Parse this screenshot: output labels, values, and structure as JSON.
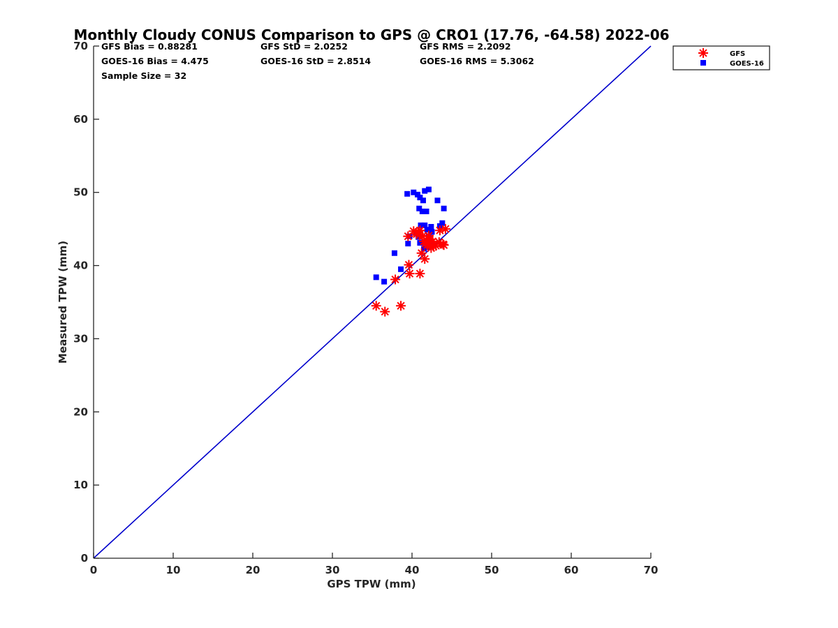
{
  "chart_data": {
    "type": "scatter",
    "title": "Monthly Cloudy CONUS Comparison to GPS @ CRO1 (17.76, -64.58) 2022-06",
    "xlabel": "GPS TPW (mm)",
    "ylabel": "Measured TPW (mm)",
    "xlim": [
      0,
      70
    ],
    "ylim": [
      0,
      70
    ],
    "xticks": [
      "0",
      "10",
      "20",
      "30",
      "40",
      "50",
      "60",
      "70"
    ],
    "yticks": [
      "0",
      "10",
      "20",
      "30",
      "40",
      "50",
      "60",
      "70"
    ],
    "grid": false,
    "legend_position": "top-right",
    "stats": [
      "GFS Bias = 0.88281",
      "GFS StD = 2.0252",
      "GFS RMS = 2.2092",
      "GOES-16 Bias = 4.475",
      "GOES-16 StD = 2.8514",
      "GOES-16 RMS = 5.3062",
      "Sample Size = 32"
    ],
    "reference_line": {
      "x": [
        0,
        70
      ],
      "y": [
        0,
        70
      ],
      "color": "#0000cc"
    },
    "series": [
      {
        "name": "GFS",
        "marker": "asterisk",
        "color": "#ff0000",
        "points": [
          [
            35.5,
            34.5
          ],
          [
            36.6,
            33.7
          ],
          [
            38.6,
            34.5
          ],
          [
            37.9,
            38.1
          ],
          [
            39.6,
            40.1
          ],
          [
            39.7,
            38.9
          ],
          [
            41.0,
            38.9
          ],
          [
            41.6,
            40.9
          ],
          [
            41.2,
            41.7
          ],
          [
            42.4,
            42.4
          ],
          [
            43.0,
            42.7
          ],
          [
            43.4,
            43.2
          ],
          [
            43.9,
            42.9
          ],
          [
            44.0,
            42.8
          ],
          [
            42.0,
            42.9
          ],
          [
            41.8,
            43.5
          ],
          [
            41.7,
            43.0
          ],
          [
            42.6,
            43.3
          ],
          [
            41.3,
            44.0
          ],
          [
            40.6,
            44.3
          ],
          [
            40.2,
            44.7
          ],
          [
            40.8,
            44.6
          ],
          [
            41.0,
            44.8
          ],
          [
            39.5,
            44.0
          ],
          [
            42.1,
            44.1
          ],
          [
            44.2,
            45.0
          ],
          [
            43.5,
            44.8
          ],
          [
            42.2,
            43.6
          ],
          [
            40.9,
            44.2
          ],
          [
            42.7,
            42.6
          ],
          [
            41.5,
            43.3
          ],
          [
            41.9,
            42.8
          ]
        ]
      },
      {
        "name": "GOES-16",
        "marker": "square",
        "color": "#0000ff",
        "points": [
          [
            35.5,
            38.4
          ],
          [
            36.5,
            37.8
          ],
          [
            37.8,
            41.7
          ],
          [
            38.6,
            39.5
          ],
          [
            39.4,
            49.8
          ],
          [
            40.2,
            50.0
          ],
          [
            40.7,
            49.7
          ],
          [
            41.0,
            49.3
          ],
          [
            41.6,
            50.2
          ],
          [
            42.1,
            50.4
          ],
          [
            41.4,
            48.9
          ],
          [
            40.9,
            47.8
          ],
          [
            41.3,
            47.4
          ],
          [
            41.8,
            47.4
          ],
          [
            43.2,
            48.9
          ],
          [
            44.0,
            47.8
          ],
          [
            41.1,
            45.5
          ],
          [
            41.6,
            45.5
          ],
          [
            43.5,
            45.4
          ],
          [
            43.8,
            45.8
          ],
          [
            42.4,
            45.3
          ],
          [
            39.7,
            44.0
          ],
          [
            39.5,
            43.0
          ],
          [
            41.0,
            43.1
          ],
          [
            41.5,
            42.3
          ],
          [
            42.0,
            42.5
          ],
          [
            42.5,
            44.6
          ],
          [
            42.1,
            44.0
          ],
          [
            40.8,
            43.9
          ],
          [
            41.9,
            44.9
          ],
          [
            42.6,
            42.8
          ],
          [
            40.5,
            44.5
          ]
        ]
      }
    ]
  }
}
